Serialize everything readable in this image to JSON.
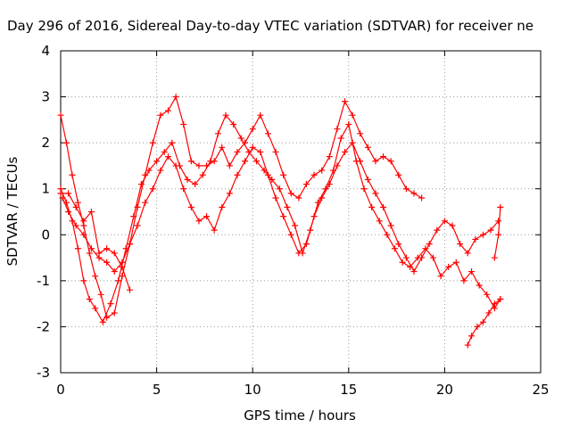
{
  "chart_data": {
    "type": "scatter",
    "title": "Day 296 of 2016, Sidereal Day-to-day VTEC variation (SDTVAR) for receiver ne",
    "xlabel": "GPS time / hours",
    "ylabel": "SDTVAR / TECUs",
    "xlim": [
      0,
      25
    ],
    "ylim": [
      -3,
      4
    ],
    "xticks": [
      0,
      5,
      10,
      15,
      20,
      25
    ],
    "yticks": [
      -3,
      -2,
      -1,
      0,
      1,
      2,
      3,
      4
    ],
    "grid": true,
    "marker": "plus",
    "color": "#ff0000",
    "series": [
      {
        "x": [
          0,
          0.3,
          0.6,
          0.9,
          1.2,
          1.5,
          1.8,
          2.1,
          2.4,
          2.8,
          3.2,
          3.6,
          4.0,
          4.4,
          4.8,
          5.2,
          5.6,
          6.0,
          6.4,
          6.8,
          7.2,
          7.6,
          8.0,
          8.4,
          8.8,
          9.2,
          9.6,
          10.0,
          10.4,
          10.8,
          11.2,
          11.6,
          12.0,
          12.4,
          12.8,
          13.2,
          13.6,
          14.0,
          14.4,
          14.8,
          15.2,
          15.6,
          16.0,
          16.4,
          16.8,
          17.2,
          17.6,
          18.0,
          18.4,
          18.8
        ],
        "y": [
          2.6,
          2.0,
          1.3,
          0.7,
          0.2,
          -0.4,
          -0.9,
          -1.3,
          -1.8,
          -1.7,
          -0.9,
          -0.2,
          0.6,
          1.3,
          2.0,
          2.6,
          2.7,
          3.0,
          2.4,
          1.6,
          1.5,
          1.5,
          1.6,
          1.9,
          1.5,
          1.8,
          2.0,
          2.3,
          2.6,
          2.2,
          1.8,
          1.3,
          0.9,
          0.8,
          1.1,
          1.3,
          1.4,
          1.7,
          2.3,
          2.9,
          2.6,
          2.2,
          1.9,
          1.6,
          1.7,
          1.6,
          1.3,
          1.0,
          0.9,
          0.8
        ]
      },
      {
        "x": [
          0,
          0.3,
          0.6,
          0.9,
          1.2,
          1.5,
          1.8,
          2.2,
          2.6,
          3.0,
          3.4,
          3.8,
          4.2,
          4.6,
          5.0,
          5.4,
          5.8,
          6.2,
          6.6,
          7.0,
          7.4,
          7.8,
          8.2,
          8.6,
          9.0,
          9.4,
          9.8,
          10.2,
          10.6,
          11.0,
          11.4,
          11.8,
          12.2,
          12.6,
          13.0,
          13.4,
          13.8,
          14.2,
          14.6,
          15.0,
          15.4,
          15.8,
          16.2,
          16.6,
          17.0,
          17.4,
          17.8,
          18.2,
          18.6,
          19.0,
          19.4,
          19.8,
          20.2,
          20.6,
          21.0,
          21.4,
          21.8,
          22.2,
          22.6,
          22.9
        ],
        "y": [
          1.0,
          0.7,
          0.3,
          -0.3,
          -1.0,
          -1.4,
          -1.6,
          -1.9,
          -1.5,
          -1.0,
          -0.3,
          0.4,
          1.1,
          1.4,
          1.6,
          1.8,
          2.0,
          1.5,
          1.2,
          1.1,
          1.3,
          1.6,
          2.2,
          2.6,
          2.4,
          2.1,
          1.8,
          1.6,
          1.4,
          1.2,
          1.0,
          0.6,
          0.2,
          -0.4,
          0.1,
          0.7,
          1.0,
          1.4,
          2.1,
          2.4,
          1.6,
          1.0,
          0.6,
          0.3,
          0.0,
          -0.3,
          -0.6,
          -0.7,
          -0.5,
          -0.3,
          -0.5,
          -0.9,
          -0.7,
          -0.6,
          -1.0,
          -0.8,
          -1.1,
          -1.3,
          -1.6,
          -1.4
        ]
      },
      {
        "x": [
          0.1,
          0.4,
          0.8,
          1.2,
          1.6,
          2.0,
          2.4,
          2.8,
          3.2,
          3.6,
          4.0,
          4.4,
          4.8,
          5.2,
          5.6,
          6.0,
          6.4,
          6.8,
          7.2,
          7.6,
          8.0,
          8.4,
          8.8,
          9.2,
          9.6,
          10.0,
          10.4,
          10.8,
          11.2,
          11.6,
          12.0,
          12.4,
          12.8,
          13.2,
          13.6,
          14.0,
          14.4,
          14.8,
          15.2,
          15.6,
          16.0,
          16.4,
          16.8,
          17.2,
          17.6,
          18.0,
          18.4,
          18.8,
          19.2,
          19.6,
          20.0,
          20.4,
          20.8,
          21.2,
          21.6,
          22.0,
          22.4,
          22.8
        ],
        "y": [
          0.8,
          0.5,
          0.2,
          0.0,
          -0.3,
          -0.5,
          -0.6,
          -0.8,
          -0.6,
          -0.2,
          0.2,
          0.7,
          1.0,
          1.4,
          1.7,
          1.5,
          1.0,
          0.6,
          0.3,
          0.4,
          0.1,
          0.6,
          0.9,
          1.3,
          1.6,
          1.9,
          1.8,
          1.3,
          0.8,
          0.4,
          0.0,
          -0.4,
          -0.2,
          0.4,
          0.8,
          1.1,
          1.5,
          1.8,
          2.0,
          1.6,
          1.2,
          0.9,
          0.6,
          0.2,
          -0.2,
          -0.5,
          -0.8,
          -0.5,
          -0.2,
          0.1,
          0.3,
          0.2,
          -0.2,
          -0.4,
          -0.1,
          0.0,
          0.1,
          0.3
        ]
      },
      {
        "x": [
          0,
          0.4,
          0.8,
          1.2,
          1.6,
          2.0,
          2.4,
          2.8,
          3.2,
          3.6
        ],
        "y": [
          0.9,
          0.9,
          0.6,
          0.3,
          0.5,
          -0.4,
          -0.3,
          -0.4,
          -0.7,
          -1.2
        ]
      },
      {
        "x": [
          21.2,
          21.4,
          21.7,
          22.0,
          22.3,
          22.6,
          22.9
        ],
        "y": [
          -2.4,
          -2.2,
          -2.0,
          -1.9,
          -1.7,
          -1.5,
          -1.4
        ]
      },
      {
        "x": [
          22.6,
          22.8,
          22.9
        ],
        "y": [
          -0.5,
          0.0,
          0.6
        ]
      }
    ]
  }
}
